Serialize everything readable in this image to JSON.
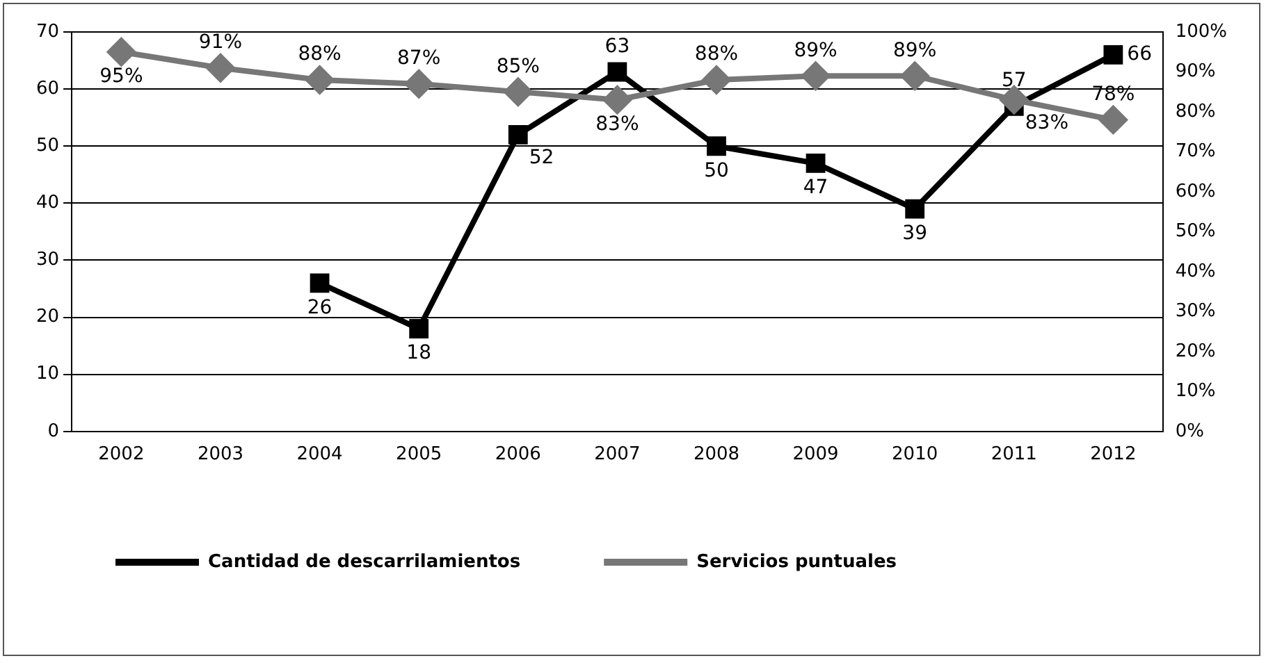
{
  "chart_data": {
    "type": "line",
    "categories": [
      "2002",
      "2003",
      "2004",
      "2005",
      "2006",
      "2007",
      "2008",
      "2009",
      "2010",
      "2011",
      "2012"
    ],
    "series": [
      {
        "name": "Cantidad de descarrilamientos",
        "color": "#000000",
        "marker": "square",
        "values": [
          null,
          null,
          26,
          18,
          52,
          63,
          50,
          47,
          39,
          57,
          66
        ],
        "value_labels": [
          null,
          null,
          "26",
          "18",
          "52",
          "63",
          "50",
          "47",
          "39",
          "57",
          "66"
        ]
      },
      {
        "name": "Servicios puntuales",
        "color": "#777777",
        "marker": "diamond",
        "axis": "y2",
        "values": [
          95,
          91,
          88,
          87,
          85,
          83,
          88,
          89,
          89,
          83,
          78
        ],
        "value_labels": [
          "95%",
          "91%",
          "88%",
          "87%",
          "85%",
          "83%",
          "88%",
          "89%",
          "89%",
          "83%",
          "78%"
        ]
      }
    ],
    "ylim": [
      0,
      70
    ],
    "yticks": [
      0,
      10,
      20,
      30,
      40,
      50,
      60,
      70
    ],
    "y2lim": [
      0,
      100
    ],
    "y2ticks": [
      {
        "value": 0,
        "label": "0%"
      },
      {
        "value": 10,
        "label": "10%"
      },
      {
        "value": 20,
        "label": "20%"
      },
      {
        "value": 30,
        "label": "30%"
      },
      {
        "value": 40,
        "label": "40%"
      },
      {
        "value": 50,
        "label": "50%"
      },
      {
        "value": 60,
        "label": "60%"
      },
      {
        "value": 70,
        "label": "70%"
      },
      {
        "value": 80,
        "label": "80%"
      },
      {
        "value": 90,
        "label": "90%"
      },
      {
        "value": 100,
        "label": "100%"
      }
    ],
    "grid": "y",
    "legend": "bottom",
    "line_style": "solid"
  }
}
